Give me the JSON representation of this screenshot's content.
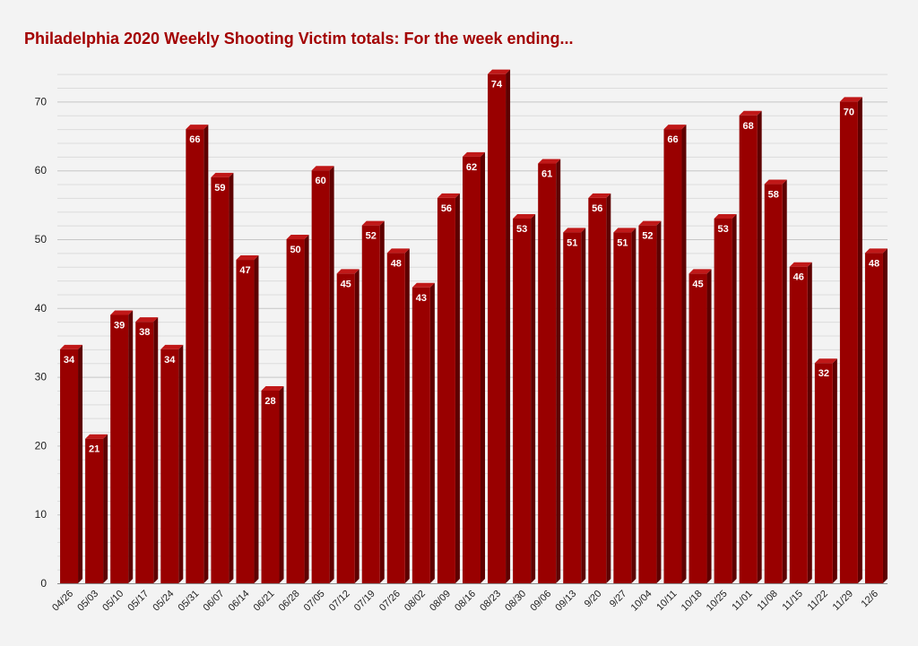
{
  "chart_data": {
    "type": "bar",
    "title": "Philadelphia 2020 Weekly Shooting Victim totals: For the week ending...",
    "xlabel": "",
    "ylabel": "",
    "ylim": [
      0,
      75
    ],
    "yticks": [
      0,
      10,
      20,
      30,
      40,
      50,
      60,
      70
    ],
    "grid": true,
    "categories": [
      "04/26",
      "05/03",
      "05/10",
      "05/17",
      "05/24",
      "05/31",
      "06/07",
      "06/14",
      "06/21",
      "06/28",
      "07/05",
      "07/12",
      "07/19",
      "07/26",
      "08/02",
      "08/09",
      "08/16",
      "08/23",
      "08/30",
      "09/06",
      "09/13",
      "9/20",
      "9/27",
      "10/04",
      "10/11",
      "10/18",
      "10/25",
      "11/01",
      "11/08",
      "11/15",
      "11/22",
      "11/29",
      "12/6"
    ],
    "values": [
      34,
      21,
      39,
      38,
      34,
      66,
      59,
      47,
      28,
      50,
      60,
      45,
      52,
      48,
      43,
      56,
      62,
      74,
      53,
      61,
      51,
      56,
      51,
      52,
      66,
      45,
      53,
      68,
      58,
      46,
      32,
      70,
      48
    ],
    "colors": {
      "bar_front": "#990000",
      "bar_side": "#5e0000",
      "bar_top": "#c01818",
      "title": "#a30000",
      "grid": "#d4d4d4",
      "background": "#f3f3f3"
    }
  }
}
